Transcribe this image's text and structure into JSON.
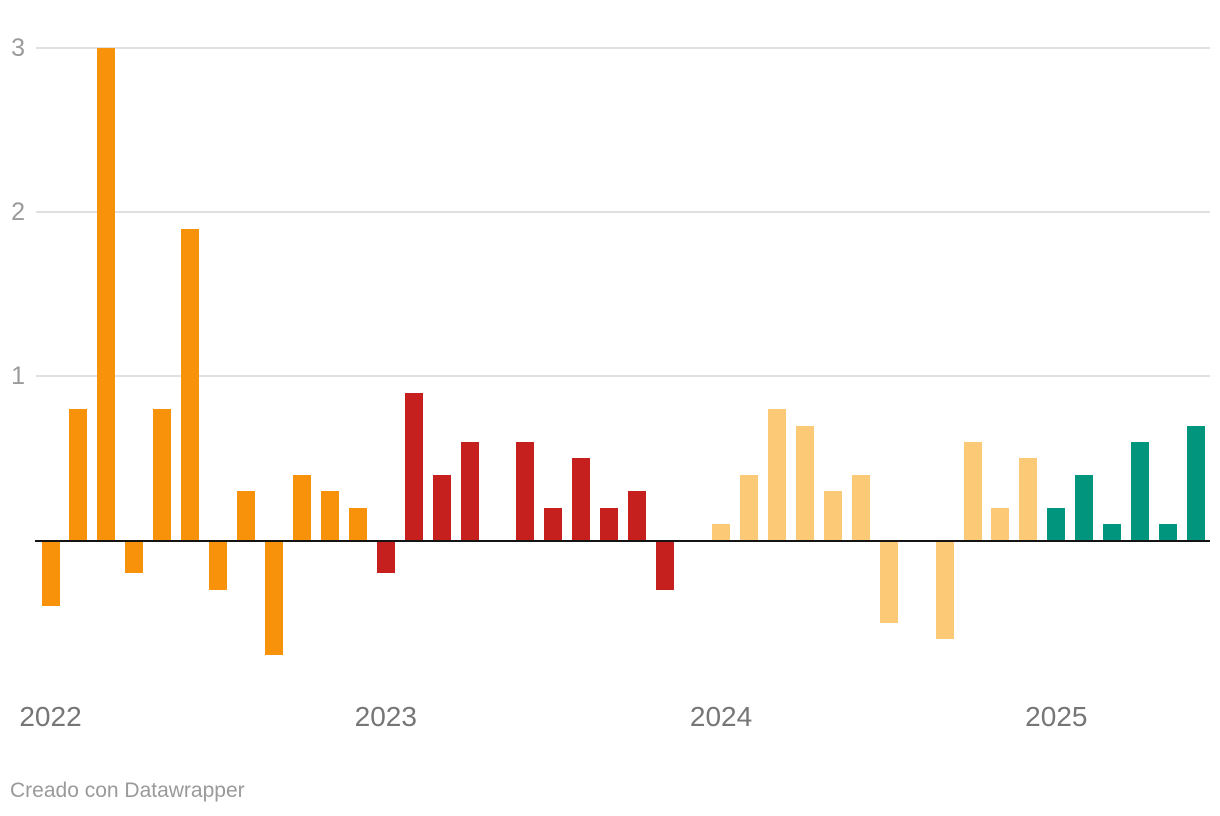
{
  "chart_data": {
    "type": "bar",
    "title": "",
    "x_axis": {
      "year_labels": [
        "2022",
        "2023",
        "2024",
        "2025"
      ],
      "months_per_year": 12
    },
    "y_axis": {
      "ticks": [
        1,
        2,
        3
      ],
      "range": [
        -0.85,
        3.05
      ],
      "gridlines": true
    },
    "baseline_value": 0,
    "legend_position": "none",
    "series": [
      {
        "name": "2022",
        "color": "#F8920B",
        "values": [
          -0.4,
          0.8,
          3.0,
          -0.2,
          0.8,
          1.9,
          -0.3,
          0.3,
          -0.7,
          0.4,
          0.3,
          0.2
        ]
      },
      {
        "name": "2023",
        "color": "#C6201E",
        "values": [
          -0.2,
          0.9,
          0.4,
          0.6,
          0.0,
          0.6,
          0.2,
          0.5,
          0.2,
          0.3,
          -0.3,
          0.0
        ]
      },
      {
        "name": "2024",
        "color": "#FCCA77",
        "values": [
          0.1,
          0.4,
          0.8,
          0.7,
          0.3,
          0.4,
          -0.5,
          0.0,
          -0.6,
          0.6,
          0.2,
          0.5
        ]
      },
      {
        "name": "2025",
        "color": "#00957C",
        "values": [
          0.2,
          0.4,
          0.1,
          0.6,
          0.1,
          0.7
        ]
      }
    ]
  },
  "footer": {
    "credit": "Creado con Datawrapper"
  },
  "theme": {
    "background": "#FFFFFF",
    "grid_color": "#E0E0E0",
    "baseline_color": "#141414",
    "ytick_color": "#9B9B9B",
    "year_label_color": "#767676",
    "credit_color": "#9A9A9A"
  }
}
